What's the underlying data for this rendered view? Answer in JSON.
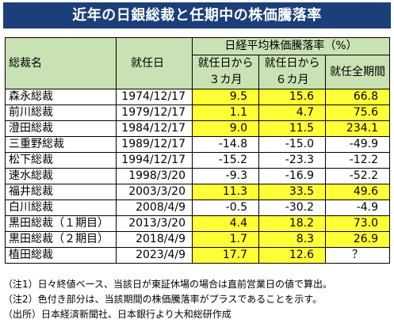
{
  "title": "近年の日銀総裁と任期中の株価騰落率",
  "header": {
    "group_label": "日経平均株価騰落率（%）",
    "col_name": "総裁名",
    "col_date": "就任日",
    "col_3m_line1": "就任日から",
    "col_3m_line2": "３カ月",
    "col_6m_line1": "就任日から",
    "col_6m_line2": "６カ月",
    "col_full": "就任全期間"
  },
  "rows": [
    {
      "name": "森永総裁",
      "date": "1974/12/17",
      "m3": "9.5",
      "m6": "15.6",
      "full": "66.8",
      "m3_pos": true,
      "m6_pos": true,
      "full_pos": true
    },
    {
      "name": "前川総裁",
      "date": "1979/12/17",
      "m3": "1.1",
      "m6": "4.7",
      "full": "75.6",
      "m3_pos": true,
      "m6_pos": true,
      "full_pos": true
    },
    {
      "name": "澄田総裁",
      "date": "1984/12/17",
      "m3": "9.0",
      "m6": "11.5",
      "full": "234.1",
      "m3_pos": true,
      "m6_pos": true,
      "full_pos": true
    },
    {
      "name": "三重野総裁",
      "date": "1989/12/17",
      "m3": "-14.8",
      "m6": "-15.0",
      "full": "-49.9",
      "m3_pos": false,
      "m6_pos": false,
      "full_pos": false
    },
    {
      "name": "松下総裁",
      "date": "1994/12/17",
      "m3": "-15.2",
      "m6": "-23.3",
      "full": "-12.2",
      "m3_pos": false,
      "m6_pos": false,
      "full_pos": false
    },
    {
      "name": "速水総裁",
      "date": "1998/3/20",
      "m3": "-9.3",
      "m6": "-16.9",
      "full": "-52.2",
      "m3_pos": false,
      "m6_pos": false,
      "full_pos": false
    },
    {
      "name": "福井総裁",
      "date": "2003/3/20",
      "m3": "11.3",
      "m6": "33.5",
      "full": "49.6",
      "m3_pos": true,
      "m6_pos": true,
      "full_pos": true
    },
    {
      "name": "白川総裁",
      "date": "2008/4/9",
      "m3": "-0.5",
      "m6": "-30.2",
      "full": "-4.9",
      "m3_pos": false,
      "m6_pos": false,
      "full_pos": false
    },
    {
      "name": "黒田総裁（１期目）",
      "date": "2013/3/20",
      "m3": "4.4",
      "m6": "18.2",
      "full": "73.0",
      "m3_pos": true,
      "m6_pos": true,
      "full_pos": true
    },
    {
      "name": "黒田総裁（２期目）",
      "date": "2018/4/9",
      "m3": "1.7",
      "m6": "8.3",
      "full": "26.9",
      "m3_pos": true,
      "m6_pos": true,
      "full_pos": true
    },
    {
      "name": "植田総裁",
      "date": "2023/4/9",
      "m3": "17.7",
      "m6": "12.6",
      "full": "？",
      "m3_pos": true,
      "m6_pos": true,
      "full_pos": false
    }
  ],
  "notes": [
    "（注1）日々終値ベース、当該日が東証休場の場合は直前営業日の値で算出。",
    "（注2）色付き部分は、当該期間の株価騰落率がプラスであることを示す。",
    "（出所）日本経済新聞社、日本銀行より大和総研作成"
  ],
  "colors": {
    "title_bg": "#1b3f7a",
    "header_bg": "#c8e2b4",
    "positive_bg": "#ffff33"
  }
}
